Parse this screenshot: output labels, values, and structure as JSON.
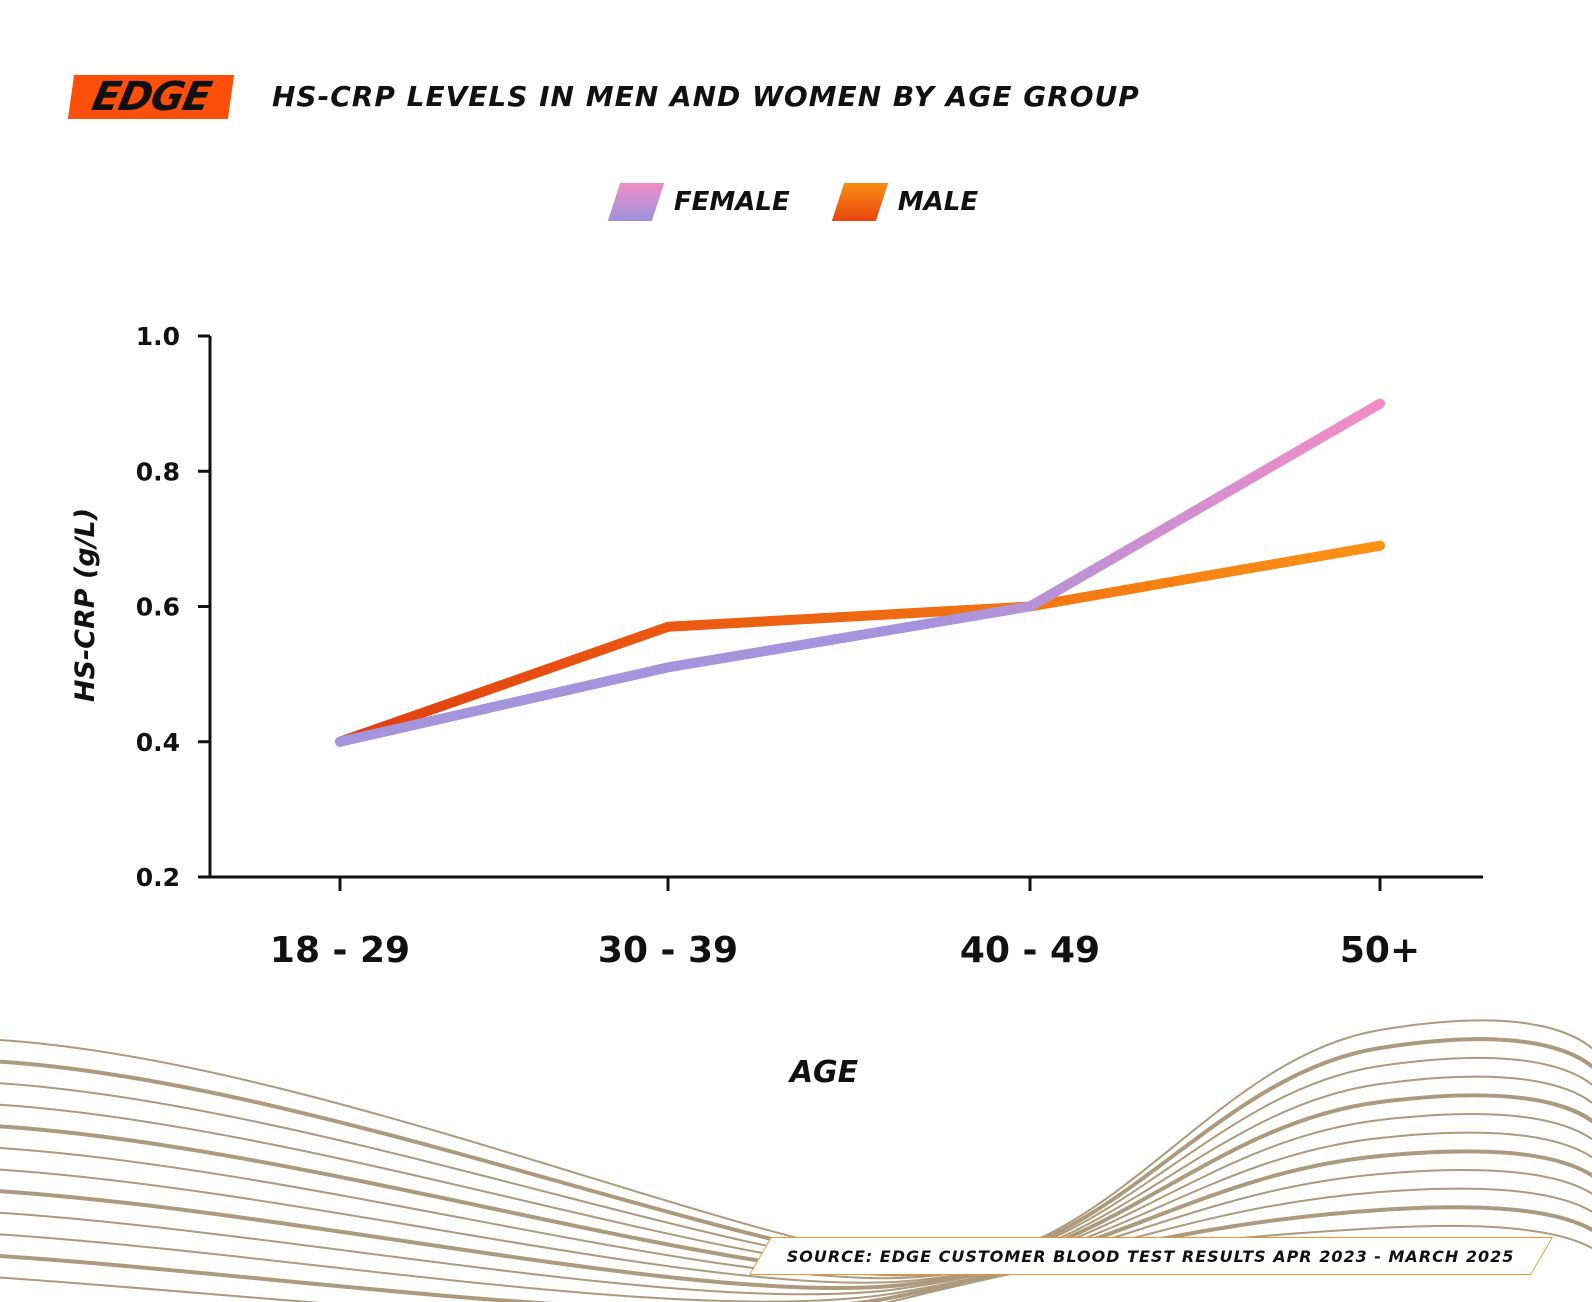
{
  "logo": "EDGE",
  "chart_data": {
    "type": "line",
    "title": "HS-CRP LEVELS IN MEN AND WOMEN BY AGE GROUP",
    "xlabel": "AGE",
    "ylabel": "HS-CRP (g/L)",
    "categories": [
      "18 - 29",
      "30 - 39",
      "40 - 49",
      "50+"
    ],
    "ylim": [
      0.2,
      1.0
    ],
    "yticks": [
      "0.2",
      "0.4",
      "0.6",
      "0.8",
      "1.0"
    ],
    "grid": false,
    "legend_position": "top-center",
    "series": [
      {
        "name": "FEMALE",
        "values": [
          0.4,
          0.51,
          0.6,
          0.9
        ],
        "colors": [
          "#9b93dc",
          "#f08cc6"
        ]
      },
      {
        "name": "MALE",
        "values": [
          0.4,
          0.57,
          0.6,
          0.69
        ],
        "colors": [
          "#e8440f",
          "#fb8f14"
        ]
      }
    ]
  },
  "source": "SOURCE: EDGE CUSTOMER BLOOD TEST RESULTS APR 2023 - MARCH 2025"
}
